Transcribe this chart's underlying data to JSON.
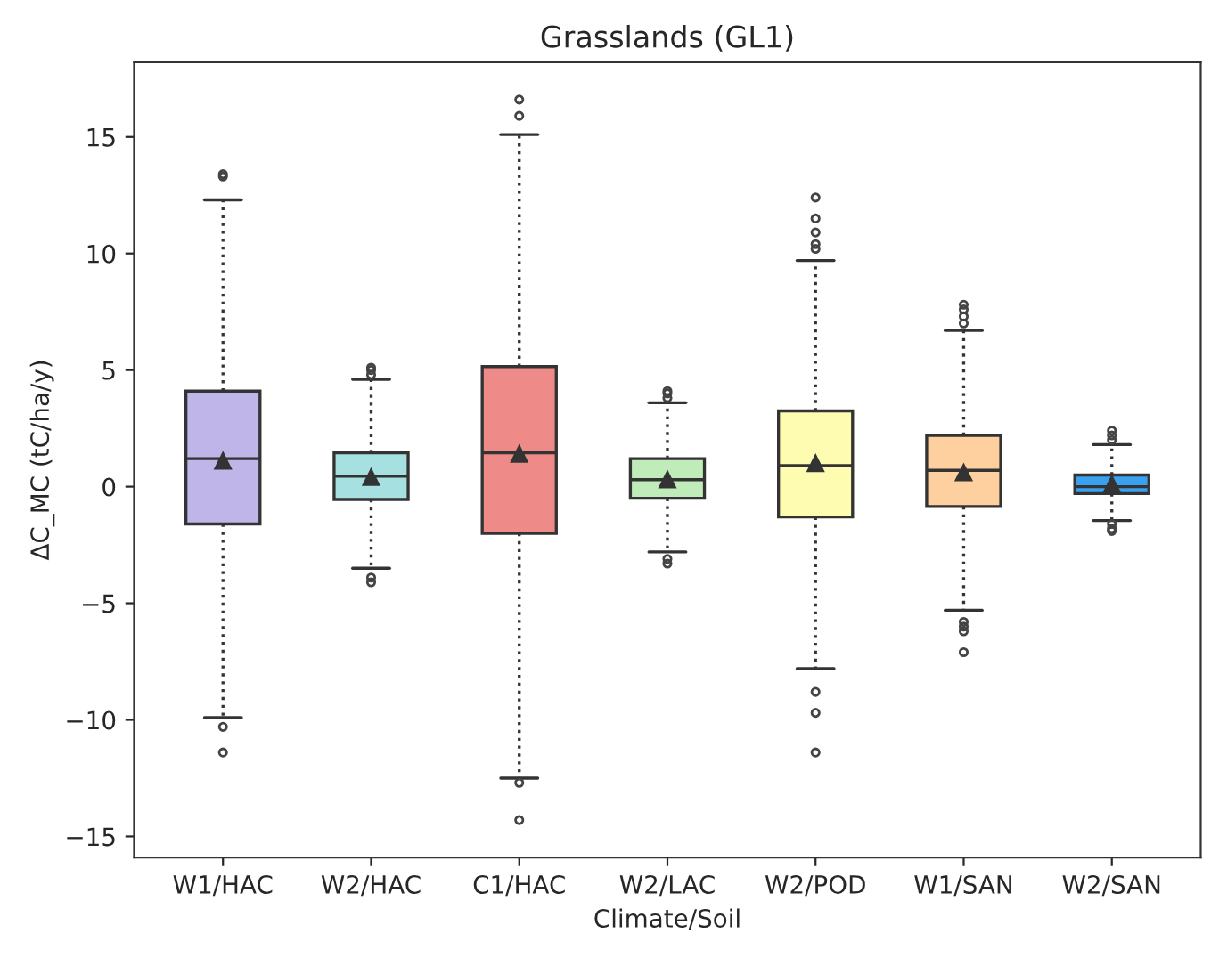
{
  "chart_data": {
    "type": "box",
    "title": "Grasslands (GL1)",
    "xlabel": "Climate/Soil",
    "ylabel": "ΔC_MC (tC/ha/y)",
    "categories": [
      "W1/HAC",
      "W2/HAC",
      "C1/HAC",
      "W2/LAC",
      "W2/POD",
      "W1/SAN",
      "W2/SAN"
    ],
    "colors": [
      "#bfb5e8",
      "#a6e0e0",
      "#ee8a87",
      "#c0ecba",
      "#fefcb0",
      "#fecf9f",
      "#3aa1f0"
    ],
    "boxes": [
      {
        "low": -9.9,
        "q1": -1.6,
        "median": 1.2,
        "q3": 4.1,
        "high": 12.3,
        "mean": 1.1,
        "outliers": [
          13.3,
          13.4,
          -10.3,
          -11.4
        ]
      },
      {
        "low": -3.5,
        "q1": -0.55,
        "median": 0.45,
        "q3": 1.45,
        "high": 4.6,
        "mean": 0.4,
        "outliers": [
          4.8,
          5.0,
          5.1,
          -3.9,
          -4.1
        ]
      },
      {
        "low": -12.5,
        "q1": -2.0,
        "median": 1.45,
        "q3": 5.15,
        "high": 15.1,
        "mean": 1.4,
        "outliers": [
          15.9,
          16.6,
          -12.7,
          -14.3
        ]
      },
      {
        "low": -2.8,
        "q1": -0.5,
        "median": 0.3,
        "q3": 1.2,
        "high": 3.6,
        "mean": 0.3,
        "outliers": [
          3.8,
          4.0,
          4.1,
          -3.1,
          -3.3
        ]
      },
      {
        "low": -7.8,
        "q1": -1.3,
        "median": 0.9,
        "q3": 3.25,
        "high": 9.7,
        "mean": 1.0,
        "outliers": [
          10.2,
          10.4,
          10.9,
          11.5,
          12.4,
          -8.8,
          -9.7,
          -11.4
        ]
      },
      {
        "low": -5.3,
        "q1": -0.85,
        "median": 0.7,
        "q3": 2.2,
        "high": 6.7,
        "mean": 0.6,
        "outliers": [
          7.0,
          7.3,
          7.6,
          7.8,
          -5.8,
          -6.0,
          -6.2,
          -7.1
        ]
      },
      {
        "low": -1.45,
        "q1": -0.3,
        "median": 0.0,
        "q3": 0.5,
        "high": 1.8,
        "mean": 0.1,
        "outliers": [
          2.0,
          2.2,
          2.4,
          -1.6,
          -1.8,
          -1.9
        ]
      }
    ],
    "ylim": [
      -15.9,
      18.2
    ],
    "yticks": [
      -15,
      -10,
      -5,
      0,
      5,
      10,
      15
    ],
    "grid": false,
    "line_style": "dotted"
  }
}
